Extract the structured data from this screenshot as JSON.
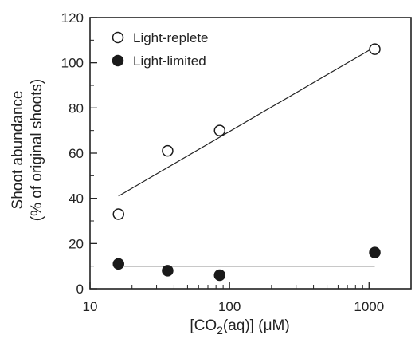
{
  "chart_data": {
    "type": "scatter",
    "x_scale": "log",
    "xlim": [
      10,
      2000
    ],
    "ylim": [
      0,
      120
    ],
    "xticks": [
      10,
      100,
      1000
    ],
    "xtick_labels": [
      "10",
      "100",
      "1000"
    ],
    "yticks": [
      0,
      20,
      40,
      60,
      80,
      100,
      120
    ],
    "ytick_labels": [
      "0",
      "20",
      "40",
      "60",
      "80",
      "100",
      "120"
    ],
    "xlabel_parts": {
      "before": "[CO",
      "sub": "2",
      "after": "(aq)] (μM)"
    },
    "ylabel_line1": "Shoot abundance",
    "ylabel_line2": "(% of original shoots)",
    "grid": false,
    "legend_position": "top-left",
    "series": [
      {
        "name": "Light-replete",
        "marker": "open-circle",
        "points": [
          {
            "x": 16,
            "y": 33
          },
          {
            "x": 36,
            "y": 61
          },
          {
            "x": 85,
            "y": 70
          },
          {
            "x": 1100,
            "y": 106
          }
        ],
        "fit": [
          {
            "x": 16,
            "y": 41
          },
          {
            "x": 1100,
            "y": 107
          }
        ]
      },
      {
        "name": "Light-limited",
        "marker": "filled-circle",
        "points": [
          {
            "x": 16,
            "y": 11
          },
          {
            "x": 36,
            "y": 8
          },
          {
            "x": 85,
            "y": 6
          },
          {
            "x": 1100,
            "y": 16
          }
        ],
        "fit": [
          {
            "x": 16,
            "y": 10
          },
          {
            "x": 1100,
            "y": 10
          }
        ]
      }
    ]
  }
}
